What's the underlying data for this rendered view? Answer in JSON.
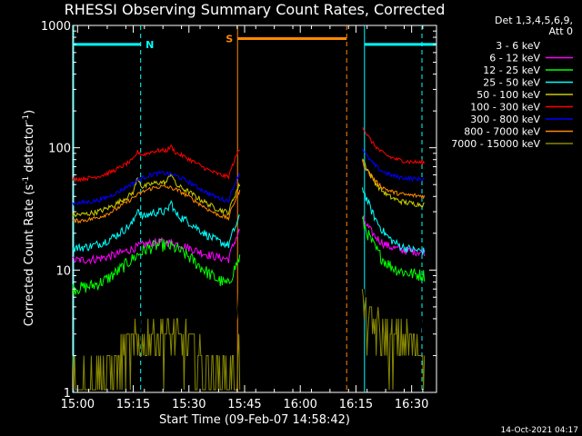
{
  "chart_data": {
    "type": "line",
    "title": "RHESSI Observing Summary Count Rates, Corrected",
    "xlabel": "Start Time (09-Feb-07 14:58:42)",
    "ylabel_main": "Corrected Count Rate (s",
    "ylabel_sup1": "-1",
    "ylabel_mid": " detector",
    "ylabel_sup2": "-1",
    "ylabel_end": ")",
    "y_scale": "log",
    "ylim": [
      1,
      1000
    ],
    "xlim_minutes": [
      0,
      98
    ],
    "x_ticks": [
      {
        "t": 1.3,
        "label": "15:00"
      },
      {
        "t": 16.3,
        "label": "15:15"
      },
      {
        "t": 31.3,
        "label": "15:30"
      },
      {
        "t": 46.3,
        "label": "15:45"
      },
      {
        "t": 61.3,
        "label": "16:00"
      },
      {
        "t": 76.3,
        "label": "16:15"
      },
      {
        "t": 91.3,
        "label": "16:30"
      }
    ],
    "y_ticks": [
      {
        "v": 1,
        "label": "1"
      },
      {
        "v": 10,
        "label": "10"
      },
      {
        "v": 100,
        "label": "100"
      },
      {
        "v": 1000,
        "label": "1000"
      }
    ],
    "legend": {
      "title_line1": "Det 1,3,4,5,6,9,",
      "title_line2": "Att 0",
      "placement": "right"
    },
    "series": [
      {
        "name": "3 - 6 keV",
        "color": "#000000"
      },
      {
        "name": "6 - 12 keV",
        "color": "#ff00ff"
      },
      {
        "name": "12 - 25 keV",
        "color": "#00ff00"
      },
      {
        "name": "25 - 50 keV",
        "color": "#00ffff"
      },
      {
        "name": "50 - 100 keV",
        "color": "#cccc00"
      },
      {
        "name": "100 - 300 keV",
        "color": "#ff0000"
      },
      {
        "name": "300 - 800 keV",
        "color": "#0000ff"
      },
      {
        "name": "800 - 7000 keV",
        "color": "#ff8800"
      },
      {
        "name": "7000 - 15000 keV",
        "color": "#888800"
      }
    ],
    "night_periods": [
      {
        "start": 0,
        "end": 18.3,
        "label": "N"
      },
      {
        "start": 78.6,
        "end": 98,
        "label": ""
      }
    ],
    "saa_periods": [
      {
        "start": 44.4,
        "end": 73.8,
        "label": "S"
      }
    ],
    "data_gap": [
      45.2,
      78.0
    ],
    "period_colors": {
      "night": "#00ffff",
      "saa": "#ff8800"
    }
  },
  "footer": {
    "timestamp": "14-Oct-2021 04:17"
  }
}
